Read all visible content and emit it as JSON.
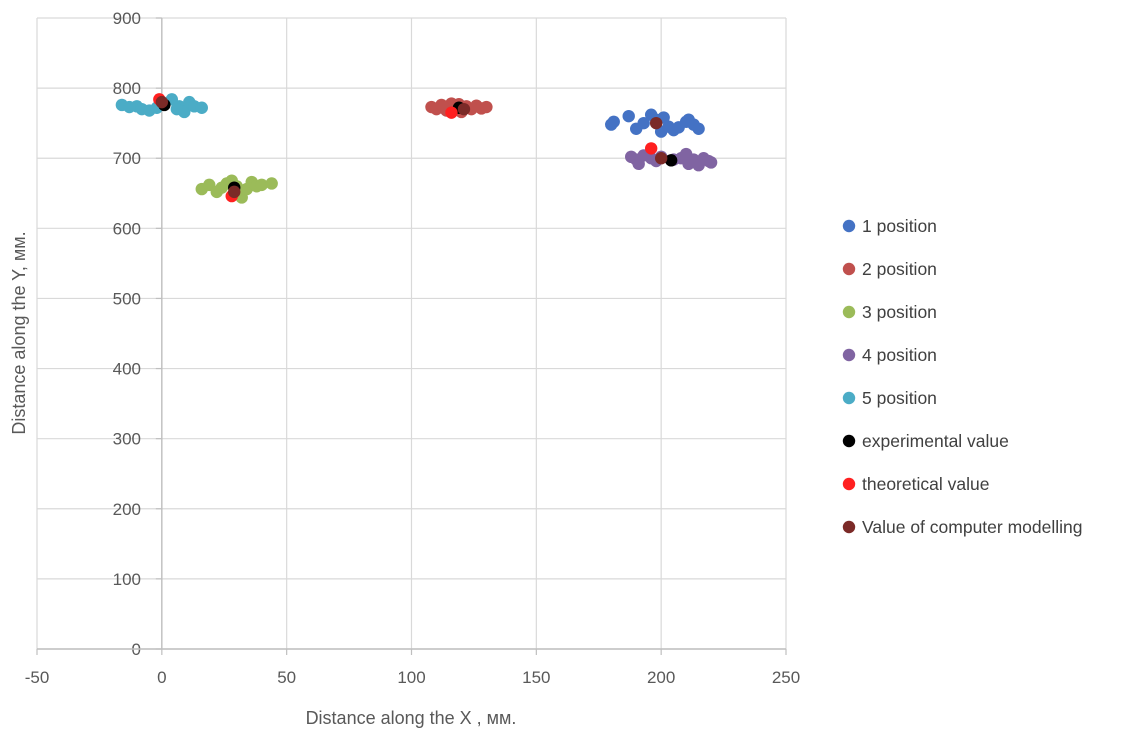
{
  "chart_data": {
    "type": "scatter",
    "xlabel": "Distance along the X , мм.",
    "ylabel": "Distance along the Y, мм.",
    "xlim": [
      -50,
      250
    ],
    "ylim": [
      0,
      900
    ],
    "xticks": [
      "-50",
      "0",
      "50",
      "100",
      "150",
      "200",
      "250"
    ],
    "yticks": [
      "0",
      "100",
      "200",
      "300",
      "400",
      "500",
      "600",
      "700",
      "800",
      "900"
    ],
    "grid": true,
    "legend_position": "right",
    "series": [
      {
        "name": "1 position",
        "color": "#4472c4",
        "points": [
          [
            180,
            748
          ],
          [
            181,
            752
          ],
          [
            187,
            760
          ],
          [
            190,
            742
          ],
          [
            193,
            750
          ],
          [
            196,
            762
          ],
          [
            198,
            755
          ],
          [
            200,
            738
          ],
          [
            201,
            758
          ],
          [
            203,
            745
          ],
          [
            205,
            740
          ],
          [
            207,
            744
          ],
          [
            210,
            752
          ],
          [
            211,
            755
          ],
          [
            213,
            748
          ],
          [
            215,
            742
          ]
        ]
      },
      {
        "name": "2 position",
        "color": "#c0504d",
        "points": [
          [
            108,
            773
          ],
          [
            110,
            770
          ],
          [
            112,
            776
          ],
          [
            114,
            768
          ],
          [
            116,
            778
          ],
          [
            118,
            772
          ],
          [
            120,
            766
          ],
          [
            122,
            774
          ],
          [
            124,
            770
          ],
          [
            126,
            775
          ],
          [
            128,
            771
          ],
          [
            130,
            773
          ],
          [
            113,
            772
          ],
          [
            119,
            777
          ]
        ]
      },
      {
        "name": "3 position",
        "color": "#9bbb59",
        "points": [
          [
            16,
            656
          ],
          [
            19,
            662
          ],
          [
            22,
            652
          ],
          [
            24,
            658
          ],
          [
            26,
            664
          ],
          [
            28,
            668
          ],
          [
            30,
            660
          ],
          [
            32,
            644
          ],
          [
            34,
            656
          ],
          [
            36,
            666
          ],
          [
            38,
            660
          ],
          [
            40,
            662
          ],
          [
            44,
            664
          ],
          [
            30,
            652
          ]
        ]
      },
      {
        "name": "4 position",
        "color": "#8064a2",
        "points": [
          [
            188,
            702
          ],
          [
            190,
            698
          ],
          [
            191,
            692
          ],
          [
            193,
            704
          ],
          [
            196,
            700
          ],
          [
            198,
            696
          ],
          [
            200,
            702
          ],
          [
            205,
            698
          ],
          [
            208,
            700
          ],
          [
            210,
            706
          ],
          [
            211,
            692
          ],
          [
            213,
            698
          ],
          [
            215,
            690
          ],
          [
            217,
            700
          ],
          [
            219,
            696
          ],
          [
            220,
            694
          ]
        ]
      },
      {
        "name": "5 position",
        "color": "#4bacc6",
        "points": [
          [
            -16,
            776
          ],
          [
            -10,
            774
          ],
          [
            -8,
            770
          ],
          [
            -5,
            768
          ],
          [
            -2,
            772
          ],
          [
            1,
            778
          ],
          [
            4,
            784
          ],
          [
            7,
            774
          ],
          [
            9,
            766
          ],
          [
            11,
            780
          ],
          [
            13,
            774
          ],
          [
            16,
            772
          ],
          [
            -13,
            773
          ],
          [
            6,
            770
          ]
        ]
      },
      {
        "name": "experimental value",
        "color": "#000000",
        "points": [
          [
            1,
            776
          ],
          [
            119,
            772
          ],
          [
            29,
            658
          ],
          [
            204,
            697
          ]
        ]
      },
      {
        "name": "theoretical value",
        "color": "#ff2020",
        "points": [
          [
            -1,
            784
          ],
          [
            116,
            765
          ],
          [
            28,
            646
          ],
          [
            196,
            714
          ]
        ]
      },
      {
        "name": "Value of computer modelling",
        "color": "#7b2a27",
        "points": [
          [
            0,
            780
          ],
          [
            121,
            770
          ],
          [
            29,
            652
          ],
          [
            198,
            750
          ],
          [
            200,
            700
          ]
        ]
      }
    ]
  }
}
